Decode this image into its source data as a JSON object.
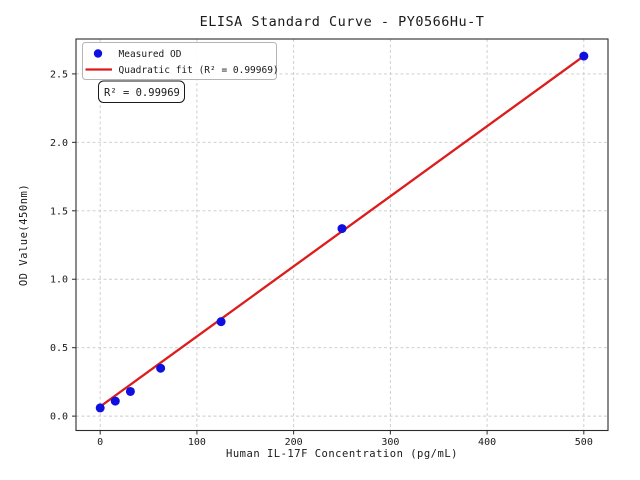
{
  "figure": {
    "background": "#ffffff"
  },
  "chart_data": {
    "type": "scatter",
    "title": "ELISA Standard Curve - PY0566Hu-T",
    "xlabel": "Human IL-17F Concentration (pg/mL)",
    "ylabel": "OD Value(450nm)",
    "xlim": [
      -25,
      525
    ],
    "ylim": [
      -0.105,
      2.755
    ],
    "x_ticks": [
      0,
      100,
      200,
      300,
      400,
      500
    ],
    "y_ticks": [
      0.0,
      0.5,
      1.0,
      1.5,
      2.0,
      2.5
    ],
    "grid": true,
    "grid_style": "dashed",
    "legend_position": "upper-left",
    "series": [
      {
        "name": "Measured OD",
        "type": "scatter",
        "color": "#0f0fe0",
        "marker": "circle",
        "x": [
          0,
          15.6,
          31.25,
          62.5,
          125,
          250,
          500
        ],
        "y": [
          0.06,
          0.11,
          0.18,
          0.35,
          0.69,
          1.37,
          2.63
        ]
      },
      {
        "name": "Quadratic fit (R² = 0.99969)",
        "type": "line",
        "color": "#dd1c1c",
        "x": [
          0,
          62.5,
          125,
          250,
          375,
          500
        ],
        "y": [
          0.07,
          0.39,
          0.71,
          1.35,
          1.99,
          2.63
        ]
      }
    ],
    "legend": {
      "entries": [
        {
          "label": "Measured OD",
          "marker": "dot"
        },
        {
          "label": "Quadratic fit (R² = 0.99969)",
          "marker": "line"
        }
      ]
    },
    "annotation": {
      "text": "R² = 0.99969"
    },
    "colors": {
      "grid": "#cacaca",
      "spine": "#2b2b2b",
      "text": "#1a1a1a",
      "legend_border": "#b5b5b5",
      "annotation_border": "#1a1a1a"
    }
  }
}
